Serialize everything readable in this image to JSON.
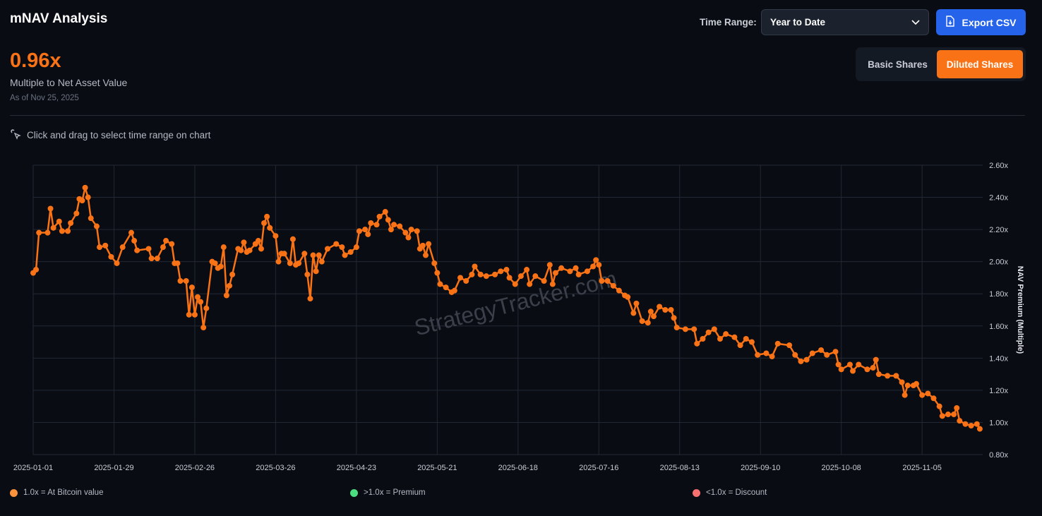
{
  "header": {
    "title": "mNAV Analysis",
    "time_range_label": "Time Range:",
    "time_range_value": "Year to Date",
    "export_label": "Export CSV"
  },
  "summary": {
    "value": "0.96x",
    "label": "Multiple to Net Asset Value",
    "as_of": "As of Nov 25, 2025"
  },
  "share_toggle": {
    "options": [
      "Basic Shares",
      "Diluted Shares"
    ],
    "selected": "Diluted Shares"
  },
  "hint": "Click and drag to select time range on chart",
  "watermark": "StrategyTracker.com",
  "legend": [
    {
      "label": "1.0x = At Bitcoin value",
      "color": "#fb923c"
    },
    {
      "label": ">1.0x = Premium",
      "color": "#4ade80"
    },
    {
      "label": "<1.0x = Discount",
      "color": "#f87171"
    }
  ],
  "colors": {
    "accent": "#f97316",
    "button": "#2563eb"
  },
  "chart_data": {
    "type": "line",
    "ylabel": "NAV Premium (Multiple)",
    "ylim": [
      0.8,
      2.6
    ],
    "xlim": [
      "2025-01-01",
      "2025-11-26"
    ],
    "yticks": [
      "0.80x",
      "1.00x",
      "1.20x",
      "1.40x",
      "1.60x",
      "1.80x",
      "2.00x",
      "2.20x",
      "2.40x",
      "2.60x"
    ],
    "xticks": [
      "2025-01-01",
      "2025-01-29",
      "2025-02-26",
      "2025-03-26",
      "2025-04-23",
      "2025-05-21",
      "2025-06-18",
      "2025-07-16",
      "2025-08-13",
      "2025-09-10",
      "2025-10-08",
      "2025-11-05"
    ],
    "grid": true,
    "series": [
      {
        "color": "#f97316",
        "points": [
          [
            "2025-01-01",
            1.93
          ],
          [
            "2025-01-02",
            1.95
          ],
          [
            "2025-01-03",
            2.18
          ],
          [
            "2025-01-06",
            2.18
          ],
          [
            "2025-01-07",
            2.33
          ],
          [
            "2025-01-08",
            2.21
          ],
          [
            "2025-01-10",
            2.25
          ],
          [
            "2025-01-11",
            2.19
          ],
          [
            "2025-01-13",
            2.19
          ],
          [
            "2025-01-14",
            2.24
          ],
          [
            "2025-01-16",
            2.3
          ],
          [
            "2025-01-17",
            2.39
          ],
          [
            "2025-01-18",
            2.38
          ],
          [
            "2025-01-19",
            2.46
          ],
          [
            "2025-01-20",
            2.4
          ],
          [
            "2025-01-21",
            2.27
          ],
          [
            "2025-01-23",
            2.22
          ],
          [
            "2025-01-24",
            2.09
          ],
          [
            "2025-01-26",
            2.1
          ],
          [
            "2025-01-28",
            2.03
          ],
          [
            "2025-01-30",
            1.99
          ],
          [
            "2025-02-01",
            2.09
          ],
          [
            "2025-02-04",
            2.18
          ],
          [
            "2025-02-05",
            2.13
          ],
          [
            "2025-02-06",
            2.07
          ],
          [
            "2025-02-10",
            2.08
          ],
          [
            "2025-02-11",
            2.02
          ],
          [
            "2025-02-13",
            2.02
          ],
          [
            "2025-02-15",
            2.09
          ],
          [
            "2025-02-16",
            2.13
          ],
          [
            "2025-02-18",
            2.11
          ],
          [
            "2025-02-19",
            1.99
          ],
          [
            "2025-02-20",
            1.99
          ],
          [
            "2025-02-21",
            1.88
          ],
          [
            "2025-02-23",
            1.88
          ],
          [
            "2025-02-24",
            1.67
          ],
          [
            "2025-02-25",
            1.84
          ],
          [
            "2025-02-26",
            1.67
          ],
          [
            "2025-02-27",
            1.78
          ],
          [
            "2025-02-28",
            1.75
          ],
          [
            "2025-03-01",
            1.59
          ],
          [
            "2025-03-02",
            1.71
          ],
          [
            "2025-03-04",
            2.0
          ],
          [
            "2025-03-05",
            1.99
          ],
          [
            "2025-03-06",
            1.96
          ],
          [
            "2025-03-07",
            1.97
          ],
          [
            "2025-03-08",
            2.09
          ],
          [
            "2025-03-09",
            1.79
          ],
          [
            "2025-03-10",
            1.85
          ],
          [
            "2025-03-11",
            1.92
          ],
          [
            "2025-03-13",
            2.08
          ],
          [
            "2025-03-14",
            2.07
          ],
          [
            "2025-03-15",
            2.12
          ],
          [
            "2025-03-16",
            2.06
          ],
          [
            "2025-03-17",
            2.07
          ],
          [
            "2025-03-19",
            2.11
          ],
          [
            "2025-03-20",
            2.13
          ],
          [
            "2025-03-21",
            2.08
          ],
          [
            "2025-03-22",
            2.24
          ],
          [
            "2025-03-23",
            2.28
          ],
          [
            "2025-03-24",
            2.21
          ],
          [
            "2025-03-26",
            2.16
          ],
          [
            "2025-03-27",
            2.0
          ],
          [
            "2025-03-28",
            2.05
          ],
          [
            "2025-03-29",
            2.05
          ],
          [
            "2025-03-31",
            1.99
          ],
          [
            "2025-04-01",
            2.14
          ],
          [
            "2025-04-02",
            1.98
          ],
          [
            "2025-04-03",
            1.99
          ],
          [
            "2025-04-05",
            2.05
          ],
          [
            "2025-04-06",
            1.92
          ],
          [
            "2025-04-07",
            1.77
          ],
          [
            "2025-04-08",
            2.04
          ],
          [
            "2025-04-09",
            1.94
          ],
          [
            "2025-04-10",
            2.04
          ],
          [
            "2025-04-11",
            2.0
          ],
          [
            "2025-04-13",
            2.08
          ],
          [
            "2025-04-16",
            2.11
          ],
          [
            "2025-04-18",
            2.09
          ],
          [
            "2025-04-19",
            2.04
          ],
          [
            "2025-04-21",
            2.06
          ],
          [
            "2025-04-23",
            2.09
          ],
          [
            "2025-04-24",
            2.19
          ],
          [
            "2025-04-26",
            2.2
          ],
          [
            "2025-04-27",
            2.17
          ],
          [
            "2025-04-28",
            2.24
          ],
          [
            "2025-04-30",
            2.23
          ],
          [
            "2025-05-01",
            2.28
          ],
          [
            "2025-05-03",
            2.31
          ],
          [
            "2025-05-04",
            2.26
          ],
          [
            "2025-05-05",
            2.2
          ],
          [
            "2025-05-06",
            2.23
          ],
          [
            "2025-05-08",
            2.22
          ],
          [
            "2025-05-10",
            2.18
          ],
          [
            "2025-05-11",
            2.15
          ],
          [
            "2025-05-12",
            2.2
          ],
          [
            "2025-05-14",
            2.19
          ],
          [
            "2025-05-15",
            2.08
          ],
          [
            "2025-05-16",
            2.1
          ],
          [
            "2025-05-17",
            2.04
          ],
          [
            "2025-05-18",
            2.11
          ],
          [
            "2025-05-20",
            1.99
          ],
          [
            "2025-05-21",
            1.93
          ],
          [
            "2025-05-22",
            1.86
          ],
          [
            "2025-05-24",
            1.84
          ],
          [
            "2025-05-26",
            1.81
          ],
          [
            "2025-05-27",
            1.82
          ],
          [
            "2025-05-29",
            1.9
          ],
          [
            "2025-05-31",
            1.88
          ],
          [
            "2025-06-02",
            1.92
          ],
          [
            "2025-06-03",
            1.97
          ],
          [
            "2025-06-05",
            1.92
          ],
          [
            "2025-06-07",
            1.91
          ],
          [
            "2025-06-10",
            1.92
          ],
          [
            "2025-06-12",
            1.94
          ],
          [
            "2025-06-14",
            1.95
          ],
          [
            "2025-06-15",
            1.9
          ],
          [
            "2025-06-17",
            1.86
          ],
          [
            "2025-06-19",
            1.91
          ],
          [
            "2025-06-21",
            1.95
          ],
          [
            "2025-06-22",
            1.86
          ],
          [
            "2025-06-24",
            1.91
          ],
          [
            "2025-06-27",
            1.88
          ],
          [
            "2025-06-29",
            1.98
          ],
          [
            "2025-06-30",
            1.86
          ],
          [
            "2025-07-01",
            1.93
          ],
          [
            "2025-07-03",
            1.96
          ],
          [
            "2025-07-06",
            1.94
          ],
          [
            "2025-07-08",
            1.96
          ],
          [
            "2025-07-09",
            1.92
          ],
          [
            "2025-07-12",
            1.94
          ],
          [
            "2025-07-14",
            1.97
          ],
          [
            "2025-07-15",
            2.01
          ],
          [
            "2025-07-16",
            1.98
          ],
          [
            "2025-07-17",
            1.88
          ],
          [
            "2025-07-19",
            1.88
          ],
          [
            "2025-07-21",
            1.85
          ],
          [
            "2025-07-23",
            1.82
          ],
          [
            "2025-07-25",
            1.79
          ],
          [
            "2025-07-26",
            1.78
          ],
          [
            "2025-07-28",
            1.68
          ],
          [
            "2025-07-29",
            1.74
          ],
          [
            "2025-07-31",
            1.63
          ],
          [
            "2025-08-02",
            1.62
          ],
          [
            "2025-08-03",
            1.69
          ],
          [
            "2025-08-04",
            1.66
          ],
          [
            "2025-08-06",
            1.72
          ],
          [
            "2025-08-08",
            1.7
          ],
          [
            "2025-08-10",
            1.7
          ],
          [
            "2025-08-11",
            1.65
          ],
          [
            "2025-08-12",
            1.59
          ],
          [
            "2025-08-15",
            1.58
          ],
          [
            "2025-08-18",
            1.58
          ],
          [
            "2025-08-19",
            1.49
          ],
          [
            "2025-08-21",
            1.52
          ],
          [
            "2025-08-23",
            1.56
          ],
          [
            "2025-08-25",
            1.58
          ],
          [
            "2025-08-27",
            1.52
          ],
          [
            "2025-08-29",
            1.55
          ],
          [
            "2025-09-01",
            1.53
          ],
          [
            "2025-09-03",
            1.48
          ],
          [
            "2025-09-05",
            1.52
          ],
          [
            "2025-09-07",
            1.5
          ],
          [
            "2025-09-09",
            1.42
          ],
          [
            "2025-09-12",
            1.43
          ],
          [
            "2025-09-14",
            1.41
          ],
          [
            "2025-09-16",
            1.49
          ],
          [
            "2025-09-20",
            1.48
          ],
          [
            "2025-09-22",
            1.42
          ],
          [
            "2025-09-24",
            1.38
          ],
          [
            "2025-09-26",
            1.39
          ],
          [
            "2025-09-28",
            1.43
          ],
          [
            "2025-10-01",
            1.45
          ],
          [
            "2025-10-03",
            1.42
          ],
          [
            "2025-10-06",
            1.44
          ],
          [
            "2025-10-07",
            1.36
          ],
          [
            "2025-10-08",
            1.33
          ],
          [
            "2025-10-11",
            1.36
          ],
          [
            "2025-10-12",
            1.32
          ],
          [
            "2025-10-14",
            1.36
          ],
          [
            "2025-10-17",
            1.33
          ],
          [
            "2025-10-19",
            1.34
          ],
          [
            "2025-10-20",
            1.39
          ],
          [
            "2025-10-21",
            1.3
          ],
          [
            "2025-10-24",
            1.29
          ],
          [
            "2025-10-27",
            1.29
          ],
          [
            "2025-10-29",
            1.25
          ],
          [
            "2025-10-30",
            1.17
          ],
          [
            "2025-10-31",
            1.23
          ],
          [
            "2025-11-02",
            1.23
          ],
          [
            "2025-11-03",
            1.24
          ],
          [
            "2025-11-05",
            1.17
          ],
          [
            "2025-11-07",
            1.18
          ],
          [
            "2025-11-09",
            1.15
          ],
          [
            "2025-11-11",
            1.1
          ],
          [
            "2025-11-12",
            1.04
          ],
          [
            "2025-11-14",
            1.05
          ],
          [
            "2025-11-16",
            1.05
          ],
          [
            "2025-11-17",
            1.09
          ],
          [
            "2025-11-18",
            1.01
          ],
          [
            "2025-11-20",
            0.99
          ],
          [
            "2025-11-22",
            0.98
          ],
          [
            "2025-11-24",
            0.99
          ],
          [
            "2025-11-25",
            0.96
          ]
        ]
      }
    ]
  }
}
